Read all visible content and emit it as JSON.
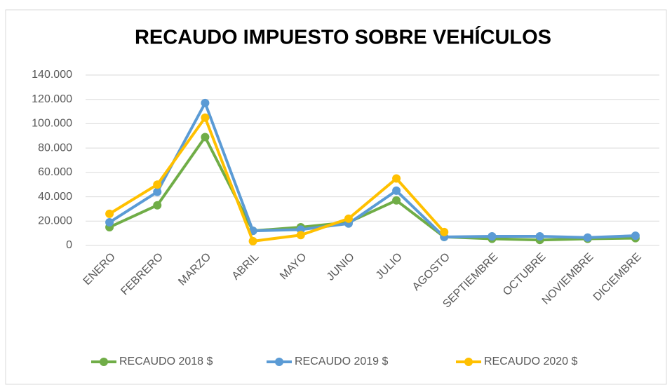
{
  "chart_data": {
    "type": "line",
    "title": "RECAUDO IMPUESTO SOBRE VEHÍCULOS",
    "categories": [
      "ENERO",
      "FEBRERO",
      "MARZO",
      "ABRIL",
      "MAYO",
      "JUNIO",
      "JULIO",
      "AGOSTO",
      "SEPTIEMBRE",
      "OCTUBRE",
      "NOVIEMBRE",
      "DICIEMBRE"
    ],
    "series": [
      {
        "name": "RECAUDO 2018 $",
        "color": "#70ad47",
        "values": [
          15000,
          33000,
          89000,
          12000,
          15000,
          19000,
          37000,
          7000,
          5500,
          4500,
          5500,
          6000
        ]
      },
      {
        "name": "RECAUDO 2019 $",
        "color": "#5b9bd5",
        "values": [
          19000,
          44000,
          117000,
          12000,
          13000,
          18000,
          45000,
          7000,
          7500,
          7500,
          6500,
          8000
        ]
      },
      {
        "name": "RECAUDO 2020 $",
        "color": "#ffc000",
        "values": [
          26000,
          50000,
          105000,
          3500,
          8500,
          22000,
          55000,
          11000,
          null,
          null,
          null,
          null
        ]
      }
    ],
    "ylim": [
      0,
      140000
    ],
    "yticks": [
      0,
      {
        "value": 20000,
        "label": "20.000"
      },
      {
        "value": 40000,
        "label": "40.000"
      },
      {
        "value": 60000,
        "label": "60.000"
      },
      {
        "value": 80000,
        "label": "80.000"
      },
      {
        "value": 100000,
        "label": "100.000"
      },
      {
        "value": 120000,
        "label": "120.000"
      },
      {
        "value": 140000,
        "label": "140.000"
      }
    ],
    "grid": true,
    "legend": "bottom"
  }
}
